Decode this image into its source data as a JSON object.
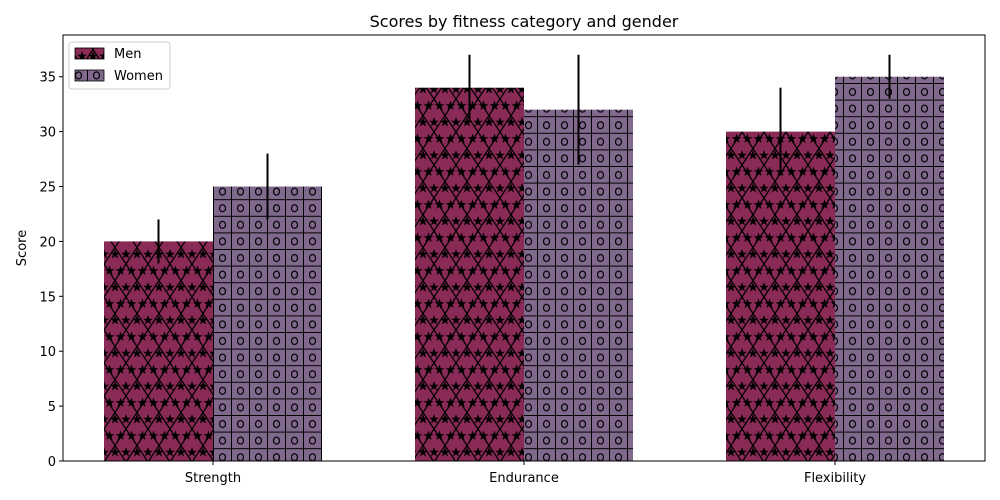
{
  "chart_data": {
    "type": "bar",
    "title": "Scores by fitness category and gender",
    "xlabel": "",
    "ylabel": "Score",
    "categories": [
      "Strength",
      "Endurance",
      "Flexibility"
    ],
    "ylim": [
      0,
      38.8
    ],
    "yticks": [
      0,
      5,
      10,
      15,
      20,
      25,
      30,
      35
    ],
    "grid": false,
    "legend_position": "top-left",
    "series": [
      {
        "name": "Men",
        "values": [
          20,
          34,
          30
        ],
        "errors": [
          2,
          3,
          4
        ],
        "color": "#8a2a56",
        "hatch": "stars-and-diagonal-cross"
      },
      {
        "name": "Women",
        "values": [
          25,
          32,
          35
        ],
        "errors": [
          3,
          5,
          2
        ],
        "color": "#80698c",
        "hatch": "circles-and-grid"
      }
    ]
  }
}
